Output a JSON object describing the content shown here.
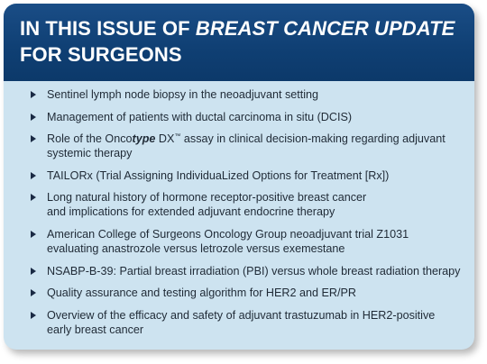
{
  "header": {
    "title_prefix": "IN THIS ISSUE OF ",
    "title_pub": "BREAST CANCER UPDATE",
    "title_suffix": "FOR SURGEONS"
  },
  "items": [
    "Sentinel lymph node biopsy in the neoadjuvant setting",
    "Management of patients with ductal carcinoma in situ (DCIS)",
    {
      "pre": "Role of the Onco",
      "em": "type",
      "brand": " DX",
      "tm": "™",
      "post": " assay in clinical decision-making regarding adjuvant",
      "line2": "systemic therapy"
    },
    "TAILORx (Trial Assigning IndividuaLized Options for Treatment [Rx])",
    {
      "line1": "Long natural history of hormone receptor-positive breast cancer",
      "line2": "and implications for extended adjuvant endocrine therapy"
    },
    {
      "line1": "American College of Surgeons Oncology Group neoadjuvant trial Z1031",
      "line2": "evaluating anastrozole versus letrozole versus exemestane"
    },
    "NSABP-B-39: Partial breast irradiation (PBI) versus whole breast radiation therapy",
    "Quality assurance and testing algorithm for HER2 and ER/PR",
    {
      "line1": "Overview of the efficacy and safety of adjuvant trastuzumab in HER2-positive",
      "line2": "early breast cancer"
    }
  ]
}
